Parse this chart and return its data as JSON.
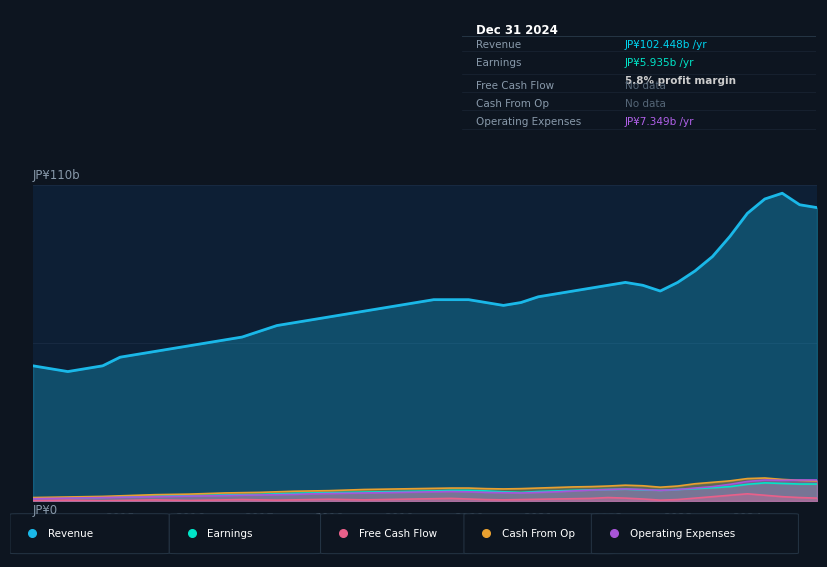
{
  "bg_color": "#0d1520",
  "plot_bg_color": "#0d1f35",
  "title_box_bg": "#080e18",
  "grid_color": "#1a2d45",
  "tick_color": "#8899aa",
  "ylabel_top": "JP¥110b",
  "ylabel_bottom": "JP¥0",
  "x_years": [
    2013.75,
    2014.0,
    2014.25,
    2014.5,
    2014.75,
    2015.0,
    2015.25,
    2015.5,
    2015.75,
    2016.0,
    2016.25,
    2016.5,
    2016.75,
    2017.0,
    2017.25,
    2017.5,
    2017.75,
    2018.0,
    2018.25,
    2018.5,
    2018.75,
    2019.0,
    2019.25,
    2019.5,
    2019.75,
    2020.0,
    2020.25,
    2020.5,
    2020.75,
    2021.0,
    2021.25,
    2021.5,
    2021.75,
    2022.0,
    2022.25,
    2022.5,
    2022.75,
    2023.0,
    2023.25,
    2023.5,
    2023.75,
    2024.0,
    2024.25,
    2024.5,
    2024.75,
    2025.0
  ],
  "revenue": [
    47,
    46,
    45,
    46,
    47,
    50,
    51,
    52,
    53,
    54,
    55,
    56,
    57,
    59,
    61,
    62,
    63,
    64,
    65,
    66,
    67,
    68,
    69,
    70,
    70,
    70,
    69,
    68,
    69,
    71,
    72,
    73,
    74,
    75,
    76,
    75,
    73,
    76,
    80,
    85,
    92,
    100,
    105,
    107,
    103,
    102
  ],
  "earnings": [
    1.0,
    1.0,
    1.1,
    1.2,
    1.3,
    1.5,
    1.6,
    1.7,
    1.8,
    1.9,
    2.0,
    2.1,
    2.2,
    2.3,
    2.5,
    2.7,
    2.8,
    2.9,
    3.0,
    3.1,
    3.2,
    3.3,
    3.4,
    3.5,
    3.7,
    3.7,
    3.5,
    3.2,
    3.0,
    3.3,
    3.5,
    3.7,
    3.9,
    4.0,
    4.1,
    3.9,
    3.7,
    4.0,
    4.3,
    4.6,
    5.0,
    5.8,
    6.3,
    6.1,
    5.9,
    5.9
  ],
  "free_cash_flow": [
    0.1,
    0.2,
    0.3,
    0.2,
    0.1,
    0.2,
    0.3,
    0.4,
    0.3,
    0.2,
    0.3,
    0.4,
    0.5,
    0.4,
    0.3,
    0.4,
    0.5,
    0.6,
    0.5,
    0.4,
    0.5,
    0.6,
    0.7,
    0.8,
    0.9,
    0.7,
    0.5,
    0.4,
    0.5,
    0.6,
    0.7,
    0.8,
    0.9,
    1.2,
    1.0,
    0.7,
    0.3,
    0.5,
    1.0,
    1.5,
    2.0,
    2.5,
    2.0,
    1.5,
    1.2,
    1.0
  ],
  "cash_from_op": [
    1.2,
    1.3,
    1.4,
    1.5,
    1.6,
    1.8,
    2.0,
    2.2,
    2.3,
    2.4,
    2.6,
    2.8,
    2.9,
    3.0,
    3.2,
    3.4,
    3.5,
    3.6,
    3.8,
    4.0,
    4.1,
    4.2,
    4.3,
    4.4,
    4.5,
    4.5,
    4.3,
    4.2,
    4.3,
    4.5,
    4.7,
    4.9,
    5.0,
    5.2,
    5.5,
    5.3,
    4.8,
    5.2,
    6.0,
    6.5,
    7.0,
    7.8,
    8.0,
    7.5,
    7.2,
    7.0
  ],
  "operating_expenses": [
    0.8,
    0.9,
    1.0,
    1.1,
    1.2,
    1.3,
    1.4,
    1.5,
    1.6,
    1.7,
    1.8,
    1.9,
    2.0,
    2.1,
    2.2,
    2.3,
    2.5,
    2.6,
    2.7,
    2.8,
    2.9,
    3.0,
    3.1,
    3.2,
    3.3,
    3.2,
    3.0,
    2.9,
    2.8,
    3.0,
    3.2,
    3.5,
    3.8,
    4.0,
    4.2,
    4.0,
    3.7,
    4.0,
    4.5,
    5.0,
    5.8,
    6.8,
    7.3,
    7.2,
    7.3,
    7.3
  ],
  "revenue_color": "#1ab8e8",
  "earnings_color": "#00e5c8",
  "free_cash_flow_color": "#e8608a",
  "cash_from_op_color": "#e8a030",
  "operating_expenses_color": "#a855d8",
  "x_ticks": [
    2015,
    2016,
    2017,
    2018,
    2019,
    2020,
    2021,
    2022,
    2023,
    2024
  ],
  "ylim": [
    0,
    110
  ],
  "title_box": {
    "date": "Dec 31 2024",
    "revenue_label": "Revenue",
    "revenue_val": "JP¥102.448b /yr",
    "earnings_label": "Earnings",
    "earnings_val": "JP¥5.935b /yr",
    "profit_margin": "5.8% profit margin",
    "fcf_label": "Free Cash Flow",
    "fcf_val": "No data",
    "cfo_label": "Cash From Op",
    "cfo_val": "No data",
    "opex_label": "Operating Expenses",
    "opex_val": "JP¥7.349b /yr"
  },
  "legend_items": [
    "Revenue",
    "Earnings",
    "Free Cash Flow",
    "Cash From Op",
    "Operating Expenses"
  ],
  "legend_colors": [
    "#1ab8e8",
    "#00e5c8",
    "#e8608a",
    "#e8a030",
    "#a855d8"
  ]
}
